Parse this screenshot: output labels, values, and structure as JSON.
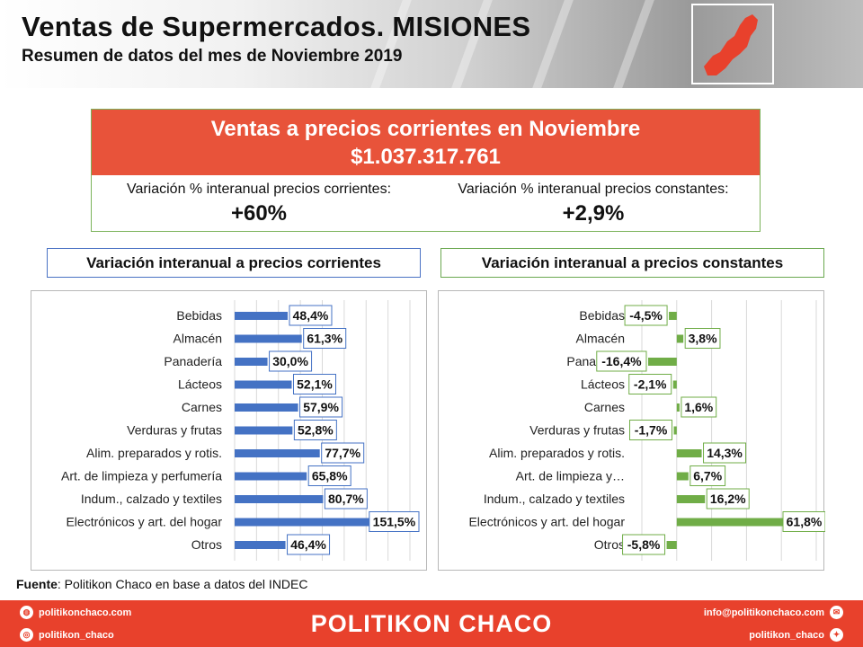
{
  "header": {
    "title": "Ventas de Supermercados. MISIONES",
    "subtitle": "Resumen de datos del mes de Noviembre 2019",
    "map_color": "#e8412c"
  },
  "summary": {
    "headline": "Ventas a precios corrientes en Noviembre",
    "amount": "$1.037.317.761",
    "left_label": "Variación % interanual precios corrientes:",
    "left_value": "+60%",
    "right_label": "Variación % interanual precios constantes:",
    "right_value": "+2,9%",
    "accent": "#e8533a"
  },
  "chart_data": [
    {
      "type": "bar",
      "orientation": "horizontal",
      "title": "Variación interanual a precios corrientes",
      "color": "#4472c4",
      "categories": [
        "Bebidas",
        "Almacén",
        "Panadería",
        "Lácteos",
        "Carnes",
        "Verduras y frutas",
        "Alim. preparados y rotis.",
        "Art. de limpieza y perfumería",
        "Indum., calzado y textiles",
        "Electrónicos y art. del hogar",
        "Otros"
      ],
      "values": [
        48.4,
        61.3,
        30.0,
        52.1,
        57.9,
        52.8,
        77.7,
        65.8,
        80.7,
        151.5,
        46.4
      ],
      "labels": [
        "48,4%",
        "61,3%",
        "30,0%",
        "52,1%",
        "57,9%",
        "52,8%",
        "77,7%",
        "65,8%",
        "80,7%",
        "151,5%",
        "46,4%"
      ],
      "xlim": [
        0,
        160
      ]
    },
    {
      "type": "bar",
      "orientation": "horizontal",
      "title": "Variación interanual a precios constantes",
      "color": "#70ad47",
      "categories": [
        "Bebidas",
        "Almacén",
        "Panadería",
        "Lácteos",
        "Carnes",
        "Verduras y frutas",
        "Alim. preparados y rotis.",
        "Art. de limpieza y…",
        "Indum., calzado y textiles",
        "Electrónicos y art. del hogar",
        "Otros"
      ],
      "values": [
        -4.5,
        3.8,
        -16.4,
        -2.1,
        1.6,
        -1.7,
        14.3,
        6.7,
        16.2,
        61.8,
        -5.8
      ],
      "labels": [
        "-4,5%",
        "3,8%",
        "-16,4%",
        "-2,1%",
        "1,6%",
        "-1,7%",
        "14,3%",
        "6,7%",
        "16,2%",
        "61,8%",
        "-5,8%"
      ],
      "xlim": [
        -20,
        80
      ]
    }
  ],
  "source": {
    "label": "Fuente",
    "text": ": Politikon Chaco en base a datos del INDEC"
  },
  "footer": {
    "brand": "POLITIKON CHACO",
    "web": "politikonchaco.com",
    "instagram": "politikon_chaco",
    "email": "info@politikonchaco.com",
    "twitter": "politikon_chaco"
  }
}
